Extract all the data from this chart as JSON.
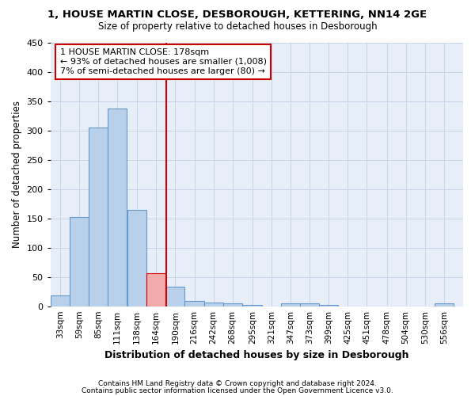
{
  "title": "1, HOUSE MARTIN CLOSE, DESBOROUGH, KETTERING, NN14 2GE",
  "subtitle": "Size of property relative to detached houses in Desborough",
  "xlabel": "Distribution of detached houses by size in Desborough",
  "ylabel": "Number of detached properties",
  "footnote1": "Contains HM Land Registry data © Crown copyright and database right 2024.",
  "footnote2": "Contains public sector information licensed under the Open Government Licence v3.0.",
  "bar_color": "#b8d0ea",
  "bar_edge_color": "#6699cc",
  "highlight_bar_color": "#f2aaaa",
  "highlight_bar_edge": "#cc0000",
  "vline_color": "#cc0000",
  "bg_color": "#e8eef8",
  "grid_color": "#c8d4e8",
  "bin_centers": [
    33,
    59,
    85,
    111,
    138,
    164,
    190,
    216,
    242,
    268,
    295,
    321,
    347,
    373,
    399,
    425,
    451,
    478,
    504,
    530,
    556
  ],
  "bin_labels": [
    "33sqm",
    "59sqm",
    "85sqm",
    "111sqm",
    "138sqm",
    "164sqm",
    "190sqm",
    "216sqm",
    "242sqm",
    "268sqm",
    "295sqm",
    "321sqm",
    "347sqm",
    "373sqm",
    "399sqm",
    "425sqm",
    "451sqm",
    "478sqm",
    "504sqm",
    "530sqm",
    "556sqm"
  ],
  "counts": [
    18,
    153,
    305,
    338,
    165,
    57,
    33,
    9,
    7,
    5,
    2,
    0,
    5,
    5,
    2,
    0,
    0,
    0,
    0,
    0,
    5
  ],
  "bin_width": 26,
  "vline_x": 178,
  "highlight_bin_index": 5,
  "annotation_lines": [
    "1 HOUSE MARTIN CLOSE: 178sqm",
    "← 93% of detached houses are smaller (1,008)",
    "7% of semi-detached houses are larger (80) →"
  ],
  "ylim": [
    0,
    450
  ],
  "yticks": [
    0,
    50,
    100,
    150,
    200,
    250,
    300,
    350,
    400,
    450
  ],
  "xlim_left": 20,
  "xlim_right": 582
}
